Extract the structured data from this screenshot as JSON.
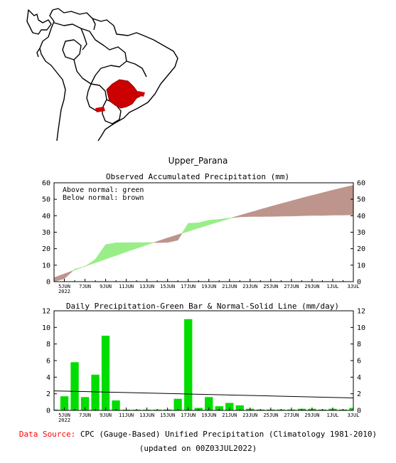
{
  "region_title": "Upper_Parana",
  "colors": {
    "above": "#99ee88",
    "below": "#bd958d",
    "bar": "#00dd00",
    "region": "#cc0000",
    "source_label": "#ff0000"
  },
  "chart_data": [
    {
      "type": "area",
      "title": "Observed Accumulated Precipitation (mm)",
      "legend_lines": [
        "Above normal: green",
        "Below normal: brown"
      ],
      "ylim": [
        0,
        60
      ],
      "yticks": [
        0,
        10,
        20,
        30,
        40,
        50,
        60
      ],
      "x_tick_labels": [
        "5JUN",
        "7JUN",
        "9JUN",
        "11JUN",
        "13JUN",
        "15JUN",
        "17JUN",
        "19JUN",
        "21JUN",
        "23JUN",
        "25JUN",
        "27JUN",
        "29JUN",
        "1JUL",
        "3JUL"
      ],
      "x_tick_first_sub": "2022",
      "x_days": [
        "2022-06-04",
        "2022-06-05",
        "2022-06-06",
        "2022-06-07",
        "2022-06-08",
        "2022-06-09",
        "2022-06-10",
        "2022-06-11",
        "2022-06-12",
        "2022-06-13",
        "2022-06-14",
        "2022-06-15",
        "2022-06-16",
        "2022-06-17",
        "2022-06-18",
        "2022-06-19",
        "2022-06-20",
        "2022-06-21",
        "2022-06-22",
        "2022-06-23",
        "2022-06-24",
        "2022-06-25",
        "2022-06-26",
        "2022-06-27",
        "2022-06-28",
        "2022-06-29",
        "2022-06-30",
        "2022-07-01",
        "2022-07-02",
        "2022-07-03"
      ],
      "series": [
        {
          "name": "observed",
          "values": [
            0.1,
            1.8,
            7.6,
            9.2,
            13.5,
            22.5,
            23.6,
            23.6,
            23.7,
            23.7,
            23.7,
            23.8,
            25.2,
            35.4,
            35.7,
            37.3,
            37.8,
            38.6,
            39.3,
            39.5,
            39.5,
            39.6,
            39.7,
            39.8,
            40.0,
            40.2,
            40.2,
            40.4,
            40.4,
            40.6
          ]
        },
        {
          "name": "normal",
          "values": [
            2.4,
            4.7,
            7.0,
            9.3,
            11.5,
            13.7,
            15.9,
            18.1,
            20.2,
            22.3,
            24.4,
            26.5,
            28.5,
            30.5,
            32.5,
            34.5,
            36.4,
            38.3,
            40.2,
            42.0,
            43.8,
            45.6,
            47.3,
            49.0,
            50.7,
            52.3,
            53.9,
            55.5,
            57.0,
            58.5
          ]
        }
      ]
    },
    {
      "type": "bar",
      "title": "Daily Precipitation-Green Bar & Normal-Solid Line (mm/day)",
      "ylim": [
        0,
        12
      ],
      "yticks": [
        0,
        2,
        4,
        6,
        8,
        10,
        12
      ],
      "x_tick_labels": [
        "5JUN",
        "7JUN",
        "9JUN",
        "11JUN",
        "13JUN",
        "15JUN",
        "17JUN",
        "19JUN",
        "21JUN",
        "23JUN",
        "25JUN",
        "27JUN",
        "29JUN",
        "1JUL",
        "3JUL"
      ],
      "x_tick_first_sub": "2022",
      "x_days": [
        "2022-06-04",
        "2022-06-05",
        "2022-06-06",
        "2022-06-07",
        "2022-06-08",
        "2022-06-09",
        "2022-06-10",
        "2022-06-11",
        "2022-06-12",
        "2022-06-13",
        "2022-06-14",
        "2022-06-15",
        "2022-06-16",
        "2022-06-17",
        "2022-06-18",
        "2022-06-19",
        "2022-06-20",
        "2022-06-21",
        "2022-06-22",
        "2022-06-23",
        "2022-06-24",
        "2022-06-25",
        "2022-06-26",
        "2022-06-27",
        "2022-06-28",
        "2022-06-29",
        "2022-06-30",
        "2022-07-01",
        "2022-07-02",
        "2022-07-03"
      ],
      "values": [
        0.1,
        1.7,
        5.8,
        1.6,
        4.3,
        9.0,
        1.2,
        0.05,
        0.05,
        0.05,
        0.05,
        0.1,
        1.4,
        11.0,
        0.3,
        1.6,
        0.5,
        0.9,
        0.6,
        0.2,
        0.1,
        0.1,
        0.1,
        0.1,
        0.2,
        0.2,
        0.1,
        0.2,
        0.1,
        0.3
      ],
      "normal_line": [
        2.35,
        1.5
      ]
    }
  ],
  "footer": {
    "source_label": "Data Source:",
    "source_text": "CPC (Gauge-Based) Unified Precipitation (Climatology 1981-2010)",
    "updated": "(updated on 00Z03JUL2022)"
  }
}
